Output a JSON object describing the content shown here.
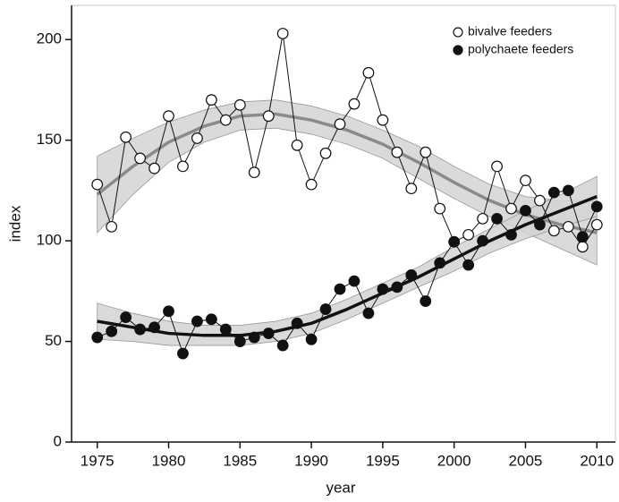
{
  "chart_data": {
    "type": "scatter",
    "xlabel": "year",
    "ylabel": "index",
    "x": [
      1975,
      1976,
      1977,
      1978,
      1979,
      1980,
      1981,
      1982,
      1983,
      1984,
      1985,
      1986,
      1987,
      1988,
      1989,
      1990,
      1991,
      1992,
      1993,
      1994,
      1995,
      1996,
      1997,
      1998,
      1999,
      2000,
      2001,
      2002,
      2003,
      2004,
      2005,
      2006,
      2007,
      2008,
      2009,
      2010
    ],
    "series": [
      {
        "name": "bivalve feeders",
        "color": "#111111",
        "marker_fill": "#ffffff",
        "values": [
          128,
          107,
          151.5,
          141,
          136,
          162,
          137,
          151,
          170,
          160,
          167.5,
          134,
          162,
          203,
          147.5,
          128,
          143.5,
          158,
          168,
          183.5,
          160,
          144,
          126,
          144,
          116,
          99.5,
          103,
          111,
          137,
          116,
          130,
          120,
          105,
          107,
          97,
          108
        ]
      },
      {
        "name": "polychaete feeders",
        "color": "#111111",
        "marker_fill": "#111111",
        "values": [
          52,
          55,
          62,
          56,
          57,
          65,
          44,
          60,
          61,
          56,
          50,
          52,
          54,
          48,
          59,
          51,
          66,
          76,
          80,
          64,
          76,
          77,
          83,
          70,
          89,
          99.5,
          88,
          100,
          111,
          103,
          115,
          108,
          124,
          125,
          102,
          117
        ]
      }
    ],
    "trends": [
      {
        "color": "#8a8a8a",
        "band_color": "#d4d4d4",
        "x": [
          1975,
          1977.5,
          1980,
          1982.5,
          1985,
          1987.5,
          1990,
          1992.5,
          1995,
          1997.5,
          2000,
          2002.5,
          2005,
          2007.5,
          2010
        ],
        "fit": [
          123,
          137,
          149,
          157,
          162,
          163,
          160,
          155,
          148,
          139,
          129,
          120,
          113,
          108,
          104
        ],
        "lower": [
          104,
          123,
          139,
          149,
          155,
          156,
          153,
          148,
          141,
          131,
          121,
          112,
          104,
          96,
          88
        ],
        "upper": [
          142,
          151,
          159,
          165,
          169,
          170,
          167,
          162,
          155,
          147,
          137,
          128,
          122,
          120,
          120
        ]
      },
      {
        "color": "#111111",
        "band_color": "#d4d4d4",
        "x": [
          1975,
          1977.5,
          1980,
          1982.5,
          1985,
          1987.5,
          1990,
          1992.5,
          1995,
          1997.5,
          2000,
          2002.5,
          2005,
          2007.5,
          2010
        ],
        "fit": [
          60,
          57,
          54,
          53,
          53,
          55,
          59,
          66,
          74,
          82,
          91,
          100,
          108,
          115,
          122
        ],
        "lower": [
          51,
          50,
          48,
          48,
          48,
          50,
          54,
          61,
          69,
          77,
          85,
          94,
          101,
          107,
          112
        ],
        "upper": [
          69,
          64,
          60,
          58,
          58,
          60,
          64,
          71,
          79,
          87,
          97,
          106,
          115,
          123,
          132
        ]
      }
    ],
    "xlim": [
      1973.2,
      2011.3
    ],
    "ylim": [
      0,
      217
    ],
    "xticks": [
      1975,
      1980,
      1985,
      1990,
      1995,
      2000,
      2005,
      2010
    ],
    "yticks": [
      0,
      50,
      100,
      150,
      200
    ],
    "legend": "upper right"
  }
}
